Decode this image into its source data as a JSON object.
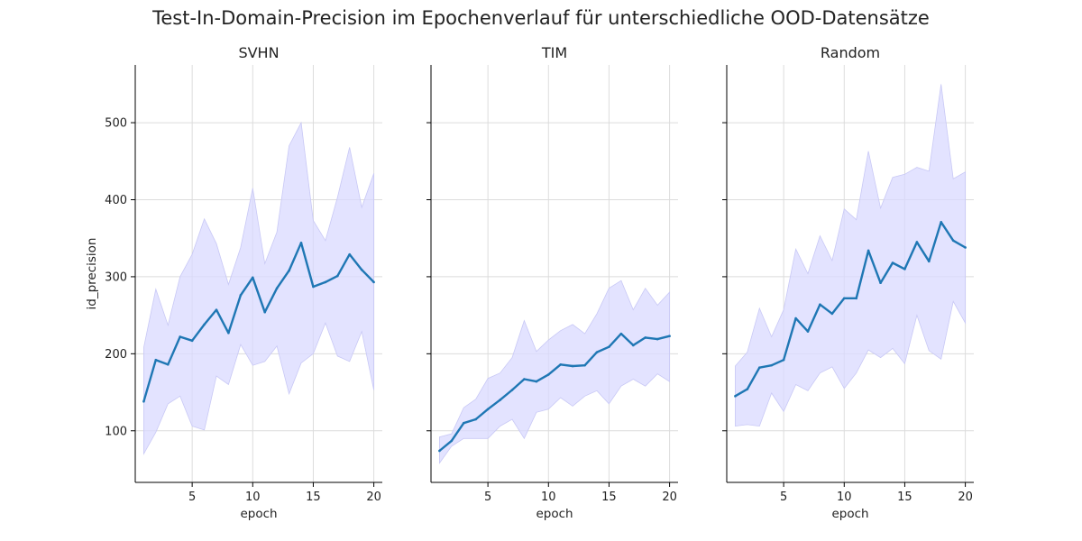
{
  "suptitle": "Test-In-Domain-Precision im Epochenverlauf für unterschiedliche OOD-Datensätze",
  "colors": {
    "line": "#1f77b4",
    "band": "#d9d9ff",
    "grid": "#dcdcdc",
    "axis": "#000000"
  },
  "chart_data": [
    {
      "type": "line",
      "title": "SVHN",
      "xlabel": "epoch",
      "ylabel": "id_precision",
      "x": [
        1,
        2,
        3,
        4,
        5,
        6,
        7,
        8,
        9,
        10,
        11,
        12,
        13,
        14,
        15,
        16,
        17,
        18,
        19,
        20
      ],
      "series": [
        {
          "values": [
            138,
            192,
            186,
            222,
            217,
            238,
            257,
            227,
            276,
            299,
            254,
            285,
            308,
            344,
            287,
            293,
            301,
            329,
            309,
            293
          ],
          "lower": [
            70,
            98,
            135,
            145,
            106,
            101,
            171,
            160,
            212,
            185,
            190,
            210,
            148,
            188,
            200,
            240,
            197,
            190,
            229,
            153
          ],
          "upper": [
            208,
            284,
            237,
            300,
            329,
            375,
            343,
            290,
            338,
            415,
            317,
            358,
            470,
            500,
            373,
            347,
            403,
            468,
            390,
            434
          ]
        }
      ],
      "xticks": [
        5,
        10,
        15,
        20
      ],
      "yticks": [
        100,
        200,
        300,
        400,
        500
      ],
      "xlim": [
        0.3,
        20.7
      ],
      "ylim": [
        33,
        575
      ],
      "grid": true
    },
    {
      "type": "line",
      "title": "TIM",
      "xlabel": "epoch",
      "ylabel": "",
      "x": [
        1,
        2,
        3,
        4,
        5,
        6,
        7,
        8,
        9,
        10,
        11,
        12,
        13,
        14,
        15,
        16,
        17,
        18,
        19,
        20
      ],
      "series": [
        {
          "values": [
            74,
            87,
            110,
            115,
            128,
            140,
            153,
            167,
            164,
            173,
            186,
            184,
            185,
            202,
            209,
            226,
            211,
            221,
            219,
            223
          ],
          "lower": [
            58,
            80,
            90,
            90,
            90,
            106,
            115,
            90,
            124,
            128,
            143,
            132,
            145,
            152,
            135,
            158,
            167,
            158,
            174,
            164
          ],
          "upper": [
            92,
            96,
            130,
            141,
            168,
            175,
            195,
            243,
            203,
            218,
            230,
            238,
            226,
            252,
            285,
            295,
            257,
            285,
            263,
            280
          ]
        }
      ],
      "xticks": [
        5,
        10,
        15,
        20
      ],
      "yticks": [
        100,
        200,
        300,
        400,
        500
      ],
      "xlim": [
        0.3,
        20.7
      ],
      "ylim": [
        33,
        575
      ],
      "grid": true
    },
    {
      "type": "line",
      "title": "Random",
      "xlabel": "epoch",
      "ylabel": "",
      "x": [
        1,
        2,
        3,
        4,
        5,
        6,
        7,
        8,
        9,
        10,
        11,
        12,
        13,
        14,
        15,
        16,
        17,
        18,
        19,
        20
      ],
      "series": [
        {
          "values": [
            145,
            154,
            182,
            185,
            192,
            246,
            229,
            264,
            252,
            272,
            272,
            334,
            292,
            318,
            310,
            345,
            320,
            371,
            347,
            338
          ],
          "lower": [
            106,
            108,
            106,
            149,
            125,
            160,
            152,
            175,
            183,
            155,
            175,
            205,
            195,
            207,
            187,
            250,
            204,
            193,
            268,
            240
          ],
          "upper": [
            184,
            202,
            259,
            222,
            257,
            336,
            304,
            353,
            321,
            388,
            374,
            463,
            389,
            429,
            433,
            442,
            437,
            550,
            427,
            436
          ]
        }
      ],
      "xticks": [
        5,
        10,
        15,
        20
      ],
      "yticks": [
        100,
        200,
        300,
        400,
        500
      ],
      "xlim": [
        0.3,
        20.7
      ],
      "ylim": [
        33,
        575
      ],
      "grid": true
    }
  ]
}
